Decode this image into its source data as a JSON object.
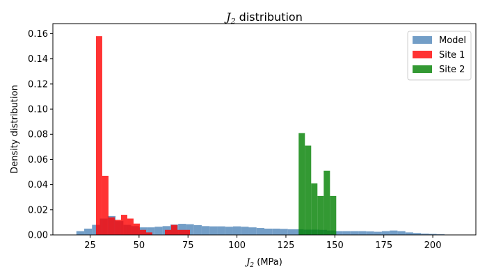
{
  "chart_data": {
    "type": "bar",
    "title_var": "J",
    "title_sub": "2",
    "title_rest": " distribution",
    "xlabel_var": "J",
    "xlabel_sub": "2",
    "xlabel_rest": " (MPa)",
    "ylabel": "Density distribution",
    "xlim": [
      6,
      222
    ],
    "ylim": [
      0,
      0.168
    ],
    "xticks": [
      25,
      50,
      75,
      100,
      125,
      150,
      175,
      200
    ],
    "yticks": [
      0.0,
      0.02,
      0.04,
      0.06,
      0.08,
      0.1,
      0.12,
      0.14,
      0.16
    ],
    "ytick_labels": [
      "0.00",
      "0.02",
      "0.04",
      "0.06",
      "0.08",
      "0.10",
      "0.12",
      "0.14",
      "0.16"
    ],
    "legend_position": "top-right",
    "grid": false,
    "series": [
      {
        "name": "Model",
        "color": "#5b8dbd",
        "opacity": 0.85,
        "bin_width": 4,
        "bins_x": [
          18,
          22,
          26,
          30,
          34,
          38,
          42,
          46,
          50,
          54,
          58,
          62,
          66,
          70,
          74,
          78,
          82,
          86,
          90,
          94,
          98,
          102,
          106,
          110,
          114,
          118,
          122,
          126,
          130,
          134,
          138,
          142,
          146,
          150,
          154,
          158,
          162,
          166,
          170,
          174,
          178,
          182,
          186,
          190,
          194,
          198,
          202
        ],
        "values": [
          0.003,
          0.005,
          0.008,
          0.013,
          0.015,
          0.011,
          0.008,
          0.007,
          0.006,
          0.006,
          0.0065,
          0.007,
          0.0082,
          0.0088,
          0.0085,
          0.0078,
          0.007,
          0.0068,
          0.0068,
          0.0065,
          0.0068,
          0.0065,
          0.006,
          0.0055,
          0.005,
          0.005,
          0.0048,
          0.0045,
          0.0045,
          0.0042,
          0.0042,
          0.004,
          0.0035,
          0.003,
          0.003,
          0.003,
          0.003,
          0.0028,
          0.0025,
          0.003,
          0.0035,
          0.003,
          0.002,
          0.0015,
          0.001,
          0.0008,
          0.0005
        ]
      },
      {
        "name": "Site 1",
        "color": "#ff0000",
        "opacity": 0.8,
        "bin_width": 3.2,
        "bins_x": [
          28,
          31.2,
          34.4,
          37.6,
          40.8,
          44,
          47.2,
          50.4,
          53.6,
          56.8,
          60,
          63.2,
          66.4,
          69.6,
          72.8
        ],
        "values": [
          0.158,
          0.047,
          0.014,
          0.012,
          0.016,
          0.013,
          0.009,
          0.004,
          0.002,
          0.0,
          0.0,
          0.004,
          0.008,
          0.004,
          0.004
        ]
      },
      {
        "name": "Site 2",
        "color": "#008000",
        "opacity": 0.8,
        "bin_width": 3.2,
        "bins_x": [
          131.5,
          134.7,
          137.9,
          141.1,
          144.3,
          147.5
        ],
        "values": [
          0.081,
          0.071,
          0.041,
          0.031,
          0.051,
          0.031
        ]
      }
    ]
  }
}
